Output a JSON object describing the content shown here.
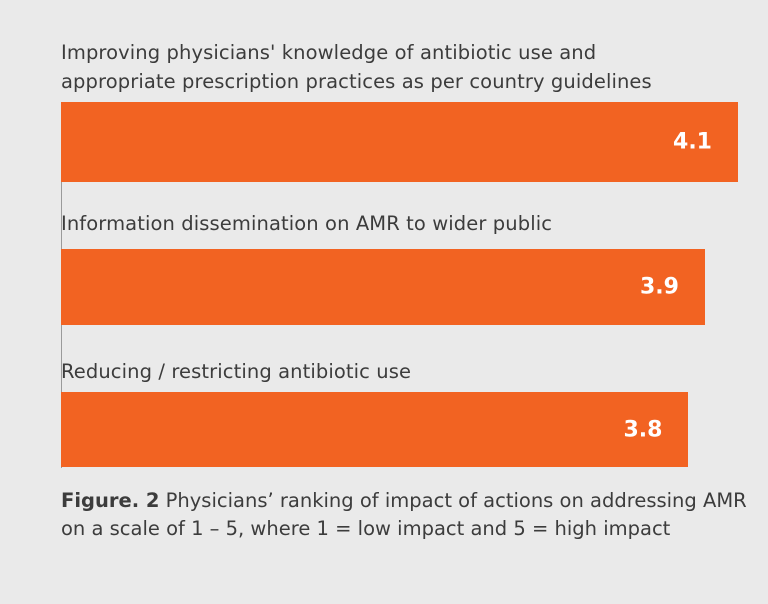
{
  "chart_data": {
    "type": "bar",
    "orientation": "horizontal",
    "categories": [
      "Improving physicians' knowledge of antibiotic use and appropriate prescription practices as per country guidelines",
      "Information dissemination on AMR to wider public",
      "Reducing / restricting antibiotic use"
    ],
    "values": [
      4.1,
      3.9,
      3.8
    ],
    "value_labels": [
      "4.1",
      "3.9",
      "3.8"
    ],
    "bar_color": "#f26322",
    "background": "#eaeaea",
    "grid": false,
    "legend": "none"
  },
  "caption": {
    "prefix": "Figure. 2",
    "text": " Physicians’ ranking of impact of actions on addressing AMR on a scale of 1 – 5, where 1 = low impact and 5 = high impact"
  }
}
